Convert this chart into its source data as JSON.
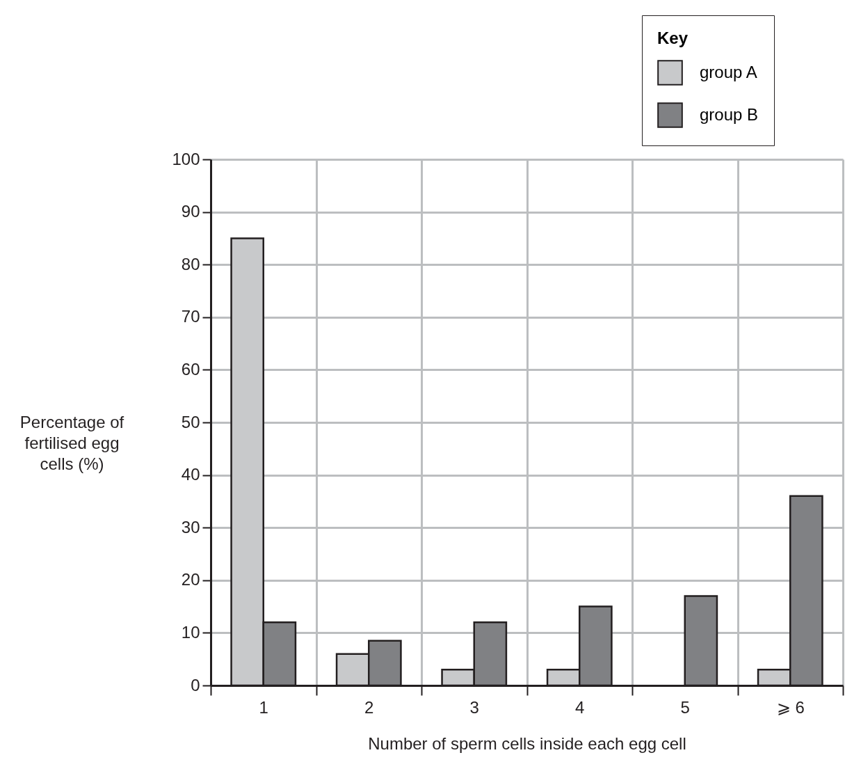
{
  "chart_data": {
    "type": "bar",
    "xlabel": "Number of sperm cells inside each egg cell",
    "ylabel": "Percentage of fertilised egg cells (%)",
    "legend_title": "Key",
    "categories": [
      "1",
      "2",
      "3",
      "4",
      "5",
      "⩾ 6"
    ],
    "series": [
      {
        "name": "group A",
        "color": "#c8c9cb",
        "values": [
          85,
          6,
          3,
          3,
          null,
          3
        ]
      },
      {
        "name": "group B",
        "color": "#808184",
        "values": [
          12,
          8.5,
          12,
          15,
          17,
          36
        ]
      }
    ],
    "ylim": [
      0,
      100
    ],
    "yticks": [
      0,
      10,
      20,
      30,
      40,
      50,
      60,
      70,
      80,
      90,
      100
    ],
    "grid": true,
    "legend": "top right"
  }
}
